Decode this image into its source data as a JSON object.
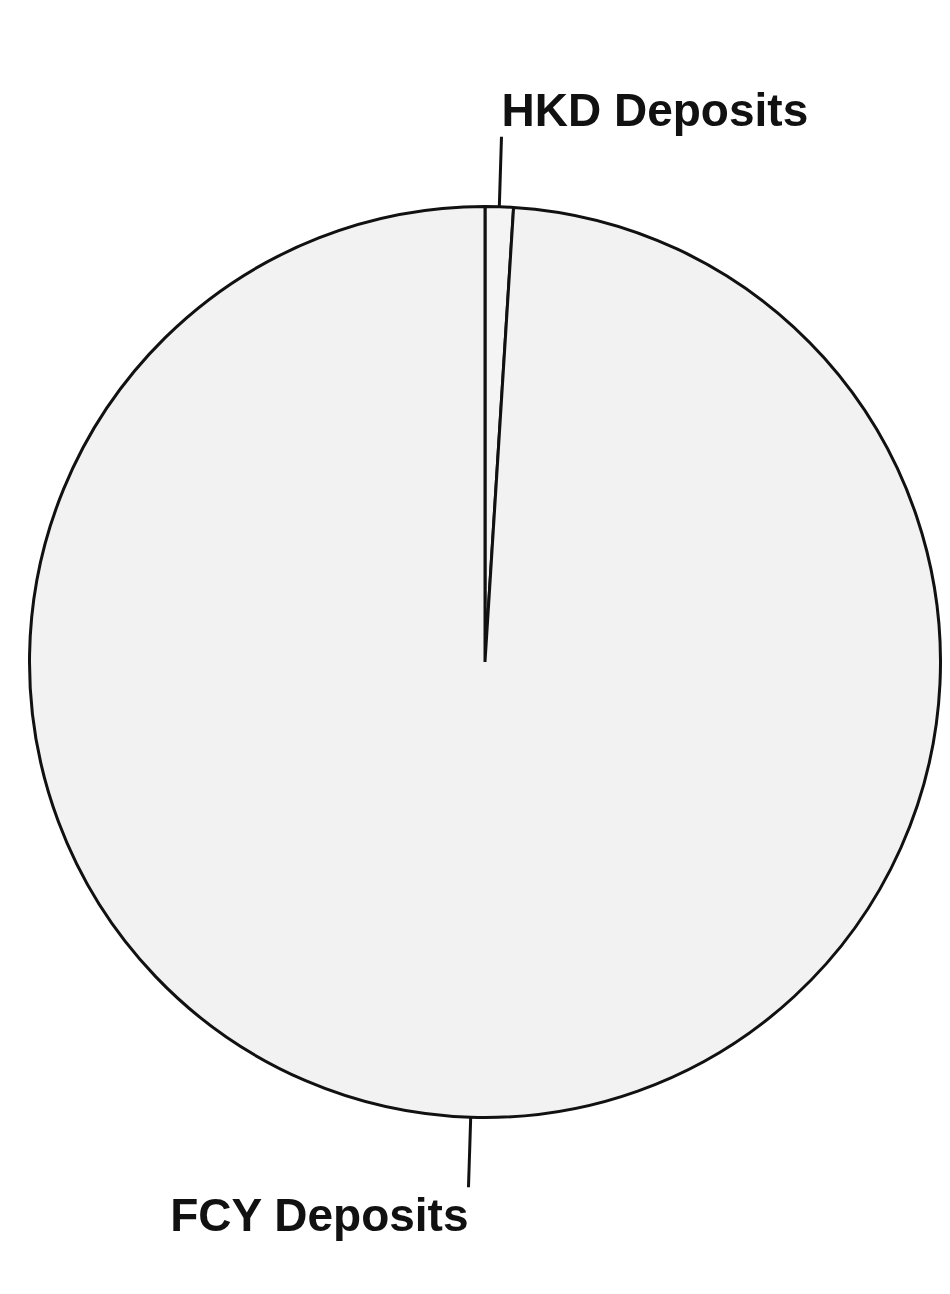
{
  "chart_data": {
    "type": "pie",
    "categories": [
      "HKD Deposits",
      "FCY Deposits"
    ],
    "values": [
      1,
      99
    ],
    "colors": [
      "#f4f4f4",
      "#f2f2f2"
    ],
    "legend": false
  }
}
